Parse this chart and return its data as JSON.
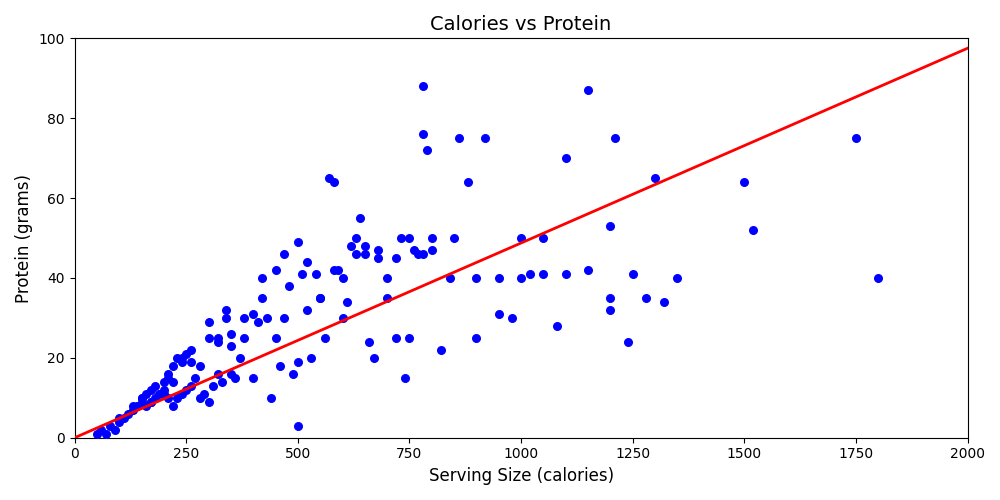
{
  "title": "Calories vs Protein",
  "xlabel": "Serving Size (calories)",
  "ylabel": "Protein (grams)",
  "xlim": [
    0,
    2000
  ],
  "ylim": [
    0,
    100
  ],
  "dot_color": "#0000FF",
  "line_color": "#FF0000",
  "dot_size": 30,
  "line_slope": 0.04555,
  "line_intercept": 0.0,
  "calories": [
    50,
    60,
    70,
    80,
    90,
    100,
    110,
    120,
    130,
    140,
    150,
    150,
    160,
    160,
    170,
    170,
    180,
    180,
    190,
    200,
    200,
    210,
    210,
    220,
    220,
    230,
    230,
    240,
    240,
    250,
    250,
    260,
    260,
    270,
    280,
    290,
    300,
    300,
    310,
    320,
    320,
    330,
    340,
    350,
    350,
    360,
    370,
    380,
    400,
    410,
    420,
    430,
    440,
    450,
    460,
    470,
    480,
    490,
    500,
    500,
    510,
    520,
    530,
    540,
    550,
    560,
    570,
    580,
    590,
    600,
    610,
    620,
    630,
    640,
    650,
    660,
    670,
    680,
    700,
    720,
    730,
    740,
    750,
    760,
    770,
    780,
    780,
    790,
    800,
    820,
    840,
    860,
    880,
    900,
    920,
    950,
    980,
    1000,
    1020,
    1050,
    1080,
    1100,
    1150,
    1200,
    1200,
    1210,
    1240,
    1250,
    1280,
    1300,
    1320,
    1350,
    1500,
    1520,
    1750,
    1800,
    100,
    130,
    150,
    170,
    200,
    210,
    220,
    240,
    260,
    280,
    300,
    320,
    340,
    350,
    380,
    400,
    420,
    450,
    470,
    500,
    520,
    550,
    580,
    600,
    630,
    650,
    680,
    700,
    720,
    750,
    780,
    800,
    850,
    900,
    950,
    1000,
    1050,
    1100,
    1150,
    1200
  ],
  "protein": [
    1,
    2,
    1,
    3,
    2,
    4,
    5,
    6,
    7,
    8,
    9,
    10,
    8,
    11,
    9,
    12,
    10,
    13,
    11,
    12,
    14,
    10,
    16,
    8,
    18,
    10,
    20,
    11,
    19,
    12,
    21,
    13,
    22,
    15,
    10,
    11,
    9,
    25,
    13,
    16,
    24,
    14,
    30,
    16,
    23,
    15,
    20,
    25,
    15,
    29,
    40,
    30,
    10,
    42,
    18,
    30,
    38,
    16,
    3,
    49,
    41,
    32,
    20,
    41,
    35,
    25,
    65,
    64,
    42,
    30,
    34,
    48,
    46,
    55,
    46,
    24,
    20,
    45,
    35,
    25,
    50,
    15,
    25,
    47,
    46,
    88,
    76,
    72,
    50,
    22,
    40,
    75,
    64,
    40,
    75,
    31,
    30,
    40,
    41,
    50,
    28,
    70,
    87,
    53,
    32,
    75,
    24,
    41,
    35,
    65,
    34,
    40,
    64,
    52,
    75,
    40,
    5,
    8,
    10,
    9,
    11,
    15,
    14,
    20,
    19,
    18,
    29,
    25,
    32,
    26,
    30,
    31,
    35,
    25,
    46,
    19,
    44,
    35,
    42,
    40,
    50,
    48,
    47,
    40,
    45,
    50,
    46,
    47,
    50,
    25,
    40,
    50,
    41,
    41,
    42,
    35
  ]
}
